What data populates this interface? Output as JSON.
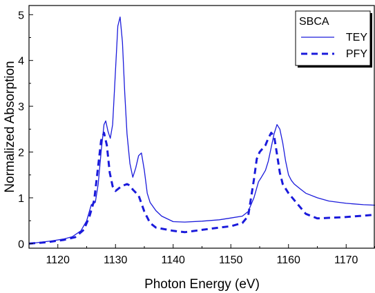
{
  "chart_data": {
    "type": "line",
    "title": "",
    "xlabel": "Photon Energy (eV)",
    "ylabel": "Normalized Absorption",
    "xlim": [
      1115,
      1175
    ],
    "ylim": [
      -0.1,
      5.2
    ],
    "x_ticks": [
      1120,
      1130,
      1140,
      1150,
      1160,
      1170
    ],
    "y_ticks": [
      0,
      1,
      2,
      3,
      4,
      5
    ],
    "grid": false,
    "legend": {
      "title": "SBCA",
      "placement": "top-right"
    },
    "colors": {
      "series": "#1a1adb",
      "axes": "#000000"
    },
    "series": [
      {
        "name": "TEY",
        "style": "solid",
        "x": [
          1115,
          1117,
          1119,
          1121,
          1122.5,
          1124,
          1125,
          1125.8,
          1126.5,
          1127,
          1127.5,
          1128,
          1128.3,
          1128.7,
          1129.1,
          1129.5,
          1130,
          1130.4,
          1130.8,
          1131.2,
          1131.6,
          1132,
          1132.5,
          1133,
          1133.5,
          1134,
          1134.5,
          1135,
          1135.5,
          1136,
          1137,
          1138,
          1140,
          1142,
          1145,
          1148,
          1150,
          1152,
          1153,
          1154,
          1154.8,
          1155.3,
          1156,
          1156.5,
          1157,
          1157.5,
          1158,
          1158.5,
          1159,
          1159.5,
          1160,
          1160.5,
          1161,
          1162,
          1163,
          1165,
          1167,
          1170,
          1173,
          1175
        ],
        "y": [
          0.0,
          0.03,
          0.06,
          0.1,
          0.15,
          0.28,
          0.5,
          0.85,
          0.9,
          1.3,
          2.0,
          2.6,
          2.68,
          2.45,
          2.3,
          2.6,
          3.8,
          4.75,
          4.95,
          4.4,
          3.3,
          2.4,
          1.75,
          1.45,
          1.65,
          1.92,
          1.98,
          1.6,
          1.1,
          0.9,
          0.72,
          0.6,
          0.48,
          0.47,
          0.49,
          0.52,
          0.56,
          0.6,
          0.7,
          1.0,
          1.35,
          1.45,
          1.6,
          1.8,
          2.1,
          2.4,
          2.6,
          2.5,
          2.2,
          1.8,
          1.5,
          1.38,
          1.3,
          1.2,
          1.1,
          1.0,
          0.93,
          0.88,
          0.85,
          0.84
        ]
      },
      {
        "name": "PFY",
        "style": "dashed",
        "x": [
          1115,
          1118,
          1121,
          1123,
          1124.5,
          1125.5,
          1126.3,
          1127,
          1127.5,
          1128,
          1128.5,
          1129,
          1129.5,
          1130,
          1131,
          1132,
          1132.5,
          1133,
          1134,
          1135,
          1136,
          1137,
          1140,
          1142,
          1145,
          1148,
          1150,
          1152,
          1153,
          1154,
          1154.5,
          1155,
          1156,
          1156.5,
          1157,
          1157.5,
          1158,
          1158.5,
          1159,
          1160,
          1161,
          1162,
          1163,
          1165,
          1170,
          1175
        ],
        "y": [
          0.0,
          0.03,
          0.08,
          0.14,
          0.3,
          0.6,
          0.95,
          1.7,
          2.25,
          2.42,
          2.15,
          1.55,
          1.25,
          1.15,
          1.25,
          1.3,
          1.27,
          1.18,
          1.05,
          0.7,
          0.45,
          0.35,
          0.28,
          0.25,
          0.3,
          0.35,
          0.38,
          0.45,
          0.6,
          1.4,
          1.85,
          2.0,
          2.15,
          2.3,
          2.42,
          2.35,
          1.95,
          1.55,
          1.3,
          1.1,
          0.95,
          0.8,
          0.65,
          0.55,
          0.58,
          0.63
        ]
      }
    ]
  }
}
